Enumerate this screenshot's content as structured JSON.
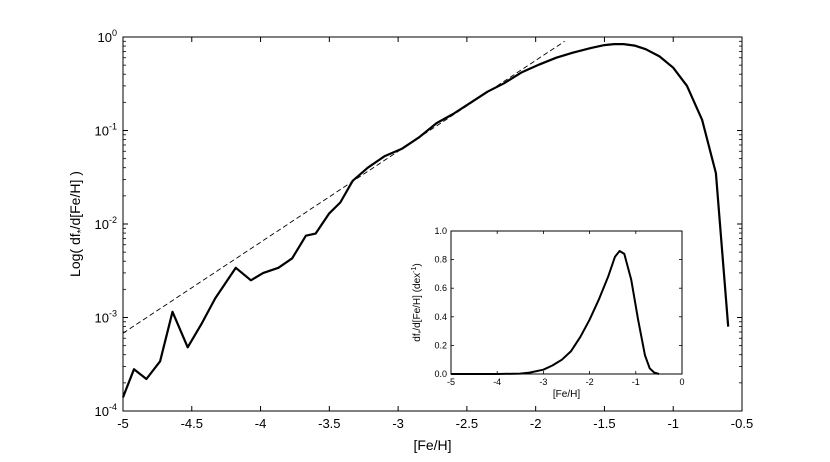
{
  "chart_data": [
    {
      "type": "line",
      "scale_y": "log",
      "xlabel": "[Fe/H]",
      "ylabel": "Log( df*/d[Fe/H] )",
      "ylabel_parts": {
        "prefix": "Log( df",
        "subscript": "*",
        "suffix": "/d[Fe/H] )"
      },
      "xlim": [
        -5,
        -0.5
      ],
      "ylim": [
        0.0001,
        1
      ],
      "x_ticks": [
        -5,
        -4.5,
        -4,
        -3.5,
        -3,
        -2.5,
        -2,
        -1.5,
        -1,
        -0.5
      ],
      "x_tick_labels": [
        "-5",
        "-4.5",
        "-4",
        "-3.5",
        "-3",
        "-2.5",
        "-2",
        "-1.5",
        "-1",
        "-0.5"
      ],
      "y_ticks": [
        0.0001,
        0.001,
        0.01,
        0.1,
        1
      ],
      "y_tick_labels": [
        {
          "base": "10",
          "exp": "-4"
        },
        {
          "base": "10",
          "exp": "-3"
        },
        {
          "base": "10",
          "exp": "-2"
        },
        {
          "base": "10",
          "exp": "-1"
        },
        {
          "base": "10",
          "exp": "0"
        }
      ],
      "grid": false,
      "series": [
        {
          "style": "solid-thick",
          "x": [
            -5.0,
            -4.92,
            -4.83,
            -4.73,
            -4.64,
            -4.53,
            -4.43,
            -4.33,
            -4.18,
            -4.07,
            -3.98,
            -3.87,
            -3.77,
            -3.67,
            -3.6,
            -3.5,
            -3.42,
            -3.33,
            -3.22,
            -3.1,
            -2.97,
            -2.85,
            -2.72,
            -2.6,
            -2.47,
            -2.35,
            -2.23,
            -2.1,
            -1.97,
            -1.85,
            -1.73,
            -1.6,
            -1.5,
            -1.43,
            -1.36,
            -1.28,
            -1.2,
            -1.1,
            -1.0,
            -0.9,
            -0.79,
            -0.69,
            -0.6
          ],
          "y": [
            0.00014,
            0.00028,
            0.00022,
            0.00034,
            0.00115,
            0.00048,
            0.00085,
            0.0016,
            0.0034,
            0.0025,
            0.003,
            0.0034,
            0.0043,
            0.0075,
            0.0079,
            0.013,
            0.017,
            0.029,
            0.04,
            0.053,
            0.064,
            0.084,
            0.12,
            0.15,
            0.2,
            0.26,
            0.32,
            0.42,
            0.51,
            0.6,
            0.68,
            0.76,
            0.82,
            0.84,
            0.84,
            0.81,
            0.74,
            0.62,
            0.47,
            0.3,
            0.13,
            0.035,
            0.0008
          ]
        },
        {
          "style": "dashed",
          "x": [
            -5.0,
            -1.79
          ],
          "y": [
            0.00068,
            0.9
          ]
        }
      ]
    },
    {
      "type": "line",
      "xlabel": "[Fe/H]",
      "ylabel": "df*/d[Fe/H] (dex^-1)",
      "ylabel_parts": {
        "prefix": "df",
        "subscript": "*",
        "middle": "/d[Fe/H] (dex",
        "superscript": "-1",
        "suffix": ")"
      },
      "xlim": [
        -5,
        0
      ],
      "ylim": [
        0,
        1
      ],
      "x_ticks": [
        -5,
        -4,
        -3,
        -2,
        -1,
        0
      ],
      "x_tick_labels": [
        "-5",
        "-4",
        "-3",
        "-2",
        "-1",
        "0"
      ],
      "y_ticks": [
        0,
        0.2,
        0.4,
        0.6,
        0.8,
        1.0
      ],
      "y_tick_labels": [
        "0.0",
        "0.2",
        "0.4",
        "0.6",
        "0.8",
        "1.0"
      ],
      "grid": false,
      "series": [
        {
          "style": "solid-thick",
          "x": [
            -5.0,
            -4.0,
            -3.5,
            -3.3,
            -3.0,
            -2.8,
            -2.6,
            -2.4,
            -2.2,
            -2.0,
            -1.8,
            -1.6,
            -1.45,
            -1.35,
            -1.25,
            -1.1,
            -0.95,
            -0.8,
            -0.7,
            -0.6,
            -0.5
          ],
          "y": [
            0.0,
            0.0,
            0.003,
            0.01,
            0.03,
            0.06,
            0.1,
            0.16,
            0.26,
            0.38,
            0.52,
            0.68,
            0.82,
            0.86,
            0.84,
            0.66,
            0.38,
            0.13,
            0.04,
            0.01,
            0.0
          ]
        }
      ]
    }
  ]
}
